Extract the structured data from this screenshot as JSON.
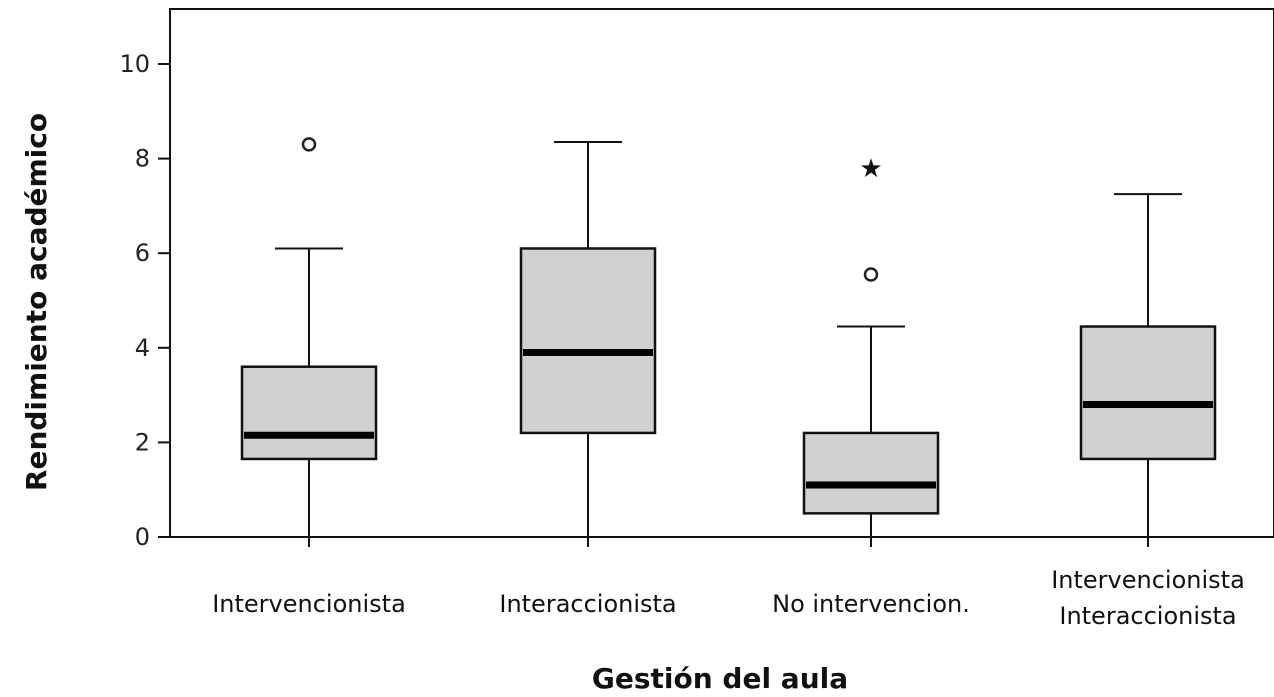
{
  "chart_data": {
    "type": "boxplot",
    "title": "",
    "xlabel": "Gestión del aula",
    "ylabel": "Rendimiento académico",
    "ylim": [
      -0.2,
      11.2
    ],
    "yticks": [
      0,
      2,
      4,
      6,
      8,
      10
    ],
    "grid": false,
    "categories": [
      {
        "label_lines": [
          "Intervencionista"
        ]
      },
      {
        "label_lines": [
          "Interaccionista"
        ]
      },
      {
        "label_lines": [
          "No intervencion."
        ]
      },
      {
        "label_lines": [
          "Intervencionista",
          "Interaccionista"
        ]
      }
    ],
    "series": [
      {
        "min": 0,
        "q1": 1.65,
        "median": 2.15,
        "q3": 3.6,
        "max": 6.1,
        "outliers": [
          {
            "value": 8.3,
            "marker": "circle"
          }
        ]
      },
      {
        "min": 0,
        "q1": 2.2,
        "median": 3.9,
        "q3": 6.1,
        "max": 8.35,
        "outliers": []
      },
      {
        "min": 0,
        "q1": 0.5,
        "median": 1.1,
        "q3": 2.2,
        "max": 4.45,
        "outliers": [
          {
            "value": 5.55,
            "marker": "circle"
          },
          {
            "value": 7.8,
            "marker": "star"
          }
        ]
      },
      {
        "min": 0,
        "q1": 1.65,
        "median": 2.8,
        "q3": 4.45,
        "max": 7.25,
        "outliers": []
      }
    ]
  }
}
